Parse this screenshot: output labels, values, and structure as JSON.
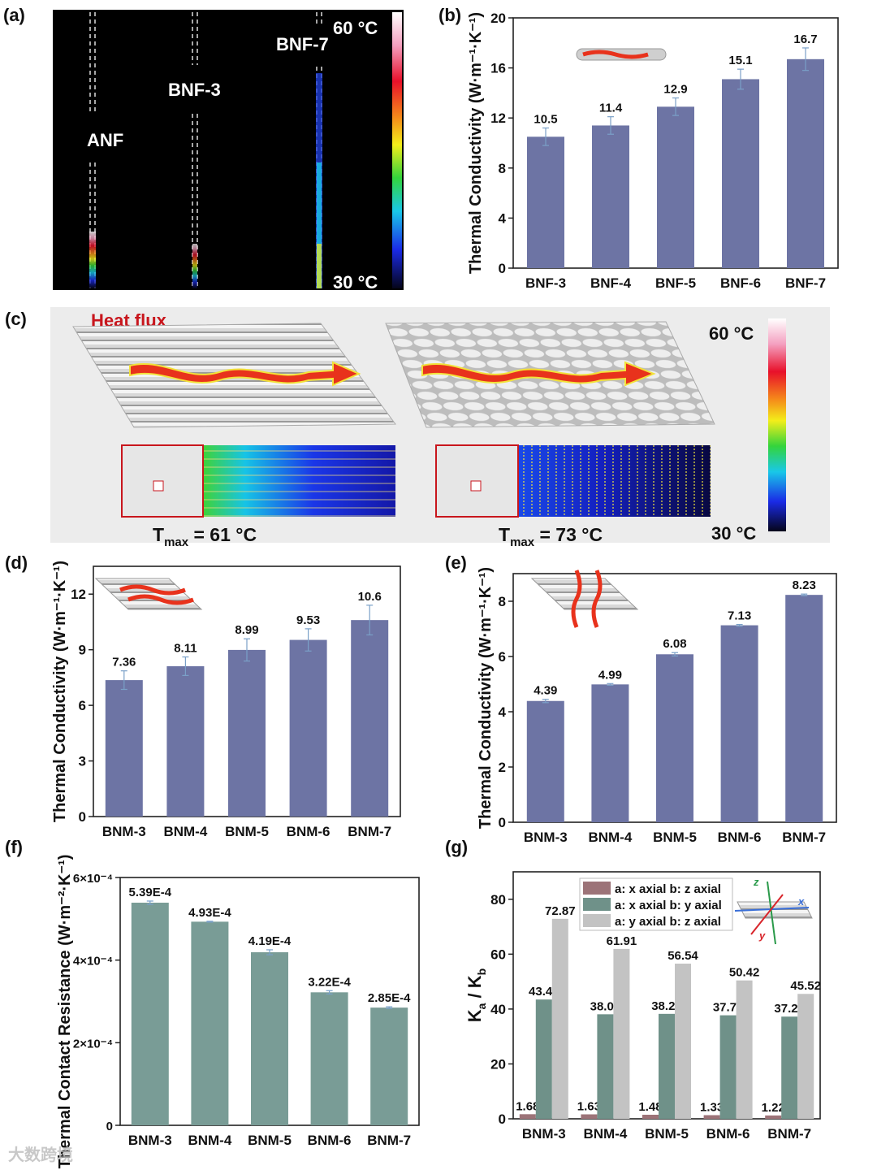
{
  "panel_a": {
    "label": "(a)",
    "sample_labels": [
      "ANF",
      "BNF-3",
      "BNF-7"
    ],
    "scale_max": "60 °C",
    "scale_min": "30 °C"
  },
  "panel_c": {
    "label": "(c)",
    "heat_flux": "Heat flux",
    "scale_max": "60 °C",
    "scale_min": "30 °C",
    "tmax_left": {
      "symbol": "T",
      "sub": "max",
      "value": " = 61 °C"
    },
    "tmax_right": {
      "symbol": "T",
      "sub": "max",
      "value": " = 73 °C"
    }
  },
  "watermark": "大数跨境",
  "chart_data": [
    {
      "id": "b",
      "panel_label": "(b)",
      "type": "bar",
      "categories": [
        "BNF-3",
        "BNF-4",
        "BNF-5",
        "BNF-6",
        "BNF-7"
      ],
      "values": [
        10.5,
        11.4,
        12.9,
        15.1,
        16.7
      ],
      "errors": [
        0.7,
        0.7,
        0.7,
        0.8,
        0.9
      ],
      "value_labels": [
        "10.5",
        "11.4",
        "12.9",
        "15.1",
        "16.7"
      ],
      "ylabel": "Thermal Conductivity (W·m⁻¹·K⁻¹)",
      "ylim": [
        0,
        20
      ],
      "yticks": [
        0,
        4,
        8,
        12,
        16,
        20
      ],
      "yticklabels": [
        "0",
        "4",
        "8",
        "12",
        "16",
        "20"
      ],
      "color": "#6d74a4",
      "grid": false
    },
    {
      "id": "d",
      "panel_label": "(d)",
      "type": "bar",
      "categories": [
        "BNM-3",
        "BNM-4",
        "BNM-5",
        "BNM-6",
        "BNM-7"
      ],
      "values": [
        7.36,
        8.11,
        8.99,
        9.53,
        10.6
      ],
      "errors": [
        0.5,
        0.5,
        0.6,
        0.6,
        0.8
      ],
      "value_labels": [
        "7.36",
        "8.11",
        "8.99",
        "9.53",
        "10.6"
      ],
      "ylabel": "Thermal Conductivity (W·m⁻¹·K⁻¹)",
      "ylim": [
        0,
        13.5
      ],
      "yticks": [
        0,
        3,
        6,
        9,
        12
      ],
      "yticklabels": [
        "0",
        "3",
        "6",
        "9",
        "12"
      ],
      "color": "#6d74a4",
      "grid": false
    },
    {
      "id": "e",
      "panel_label": "(e)",
      "type": "bar",
      "categories": [
        "BNM-3",
        "BNM-4",
        "BNM-5",
        "BNM-6",
        "BNM-7"
      ],
      "values": [
        4.39,
        4.99,
        6.08,
        7.13,
        8.23
      ],
      "errors": [
        0.06,
        0.03,
        0.06,
        0.03,
        0.03
      ],
      "value_labels": [
        "4.39",
        "4.99",
        "6.08",
        "7.13",
        "8.23"
      ],
      "ylabel": "Thermal Conductivity (W·m⁻¹·K⁻¹)",
      "ylim": [
        0,
        9
      ],
      "yticks": [
        0,
        2,
        4,
        6,
        8
      ],
      "yticklabels": [
        "0",
        "2",
        "4",
        "6",
        "8"
      ],
      "color": "#6d74a4",
      "grid": false
    },
    {
      "id": "f",
      "panel_label": "(f)",
      "type": "bar",
      "categories": [
        "BNM-3",
        "BNM-4",
        "BNM-5",
        "BNM-6",
        "BNM-7"
      ],
      "values": [
        0.000539,
        0.000493,
        0.000419,
        0.000322,
        0.000285
      ],
      "errors": [
        4e-06,
        1e-06,
        6e-06,
        4e-06,
        2e-06
      ],
      "value_labels": [
        "5.39E-4",
        "4.93E-4",
        "4.19E-4",
        "3.22E-4",
        "2.85E-4"
      ],
      "ylabel": "Thermal Contact Resistance (W·m⁻²·K⁻¹)",
      "ylim": [
        0,
        0.0006
      ],
      "yticks": [
        0,
        0.0002,
        0.0004,
        0.0006
      ],
      "yticklabels": [
        "0",
        "2×10⁻⁴",
        "4×10⁻⁴",
        "6×10⁻⁴"
      ],
      "color": "#799c96",
      "grid": false
    },
    {
      "id": "g",
      "panel_label": "(g)",
      "type": "bar",
      "categories": [
        "BNM-3",
        "BNM-4",
        "BNM-5",
        "BNM-6",
        "BNM-7"
      ],
      "series": [
        {
          "name": "a: x axial b: z axial",
          "values": [
            1.68,
            1.63,
            1.48,
            1.33,
            1.22
          ],
          "value_labels": [
            "1.68",
            "1.63",
            "1.48",
            "1.33",
            "1.22"
          ],
          "color": "#9c7378"
        },
        {
          "name": "a: x axial b: y axial",
          "values": [
            43.47,
            38.09,
            38.24,
            37.72,
            37.24
          ],
          "value_labels": [
            "43.47",
            "38.09",
            "38.24",
            "37.72",
            "37.24"
          ],
          "color": "#6f9189"
        },
        {
          "name": "a: y axial b: z axial",
          "values": [
            72.87,
            61.91,
            56.54,
            50.42,
            45.52
          ],
          "value_labels": [
            "72.87",
            "61.91",
            "56.54",
            "50.42",
            "45.52"
          ],
          "color": "#c3c3c3"
        }
      ],
      "ylabel_parts": [
        "K",
        "a",
        " / K",
        "b"
      ],
      "ylim": [
        0,
        90
      ],
      "yticks": [
        0,
        20,
        40,
        60,
        80
      ],
      "yticklabels": [
        "0",
        "20",
        "40",
        "60",
        "80"
      ],
      "legend_position": "top-center",
      "inset_axes": [
        "x",
        "y",
        "z"
      ],
      "grid": false
    }
  ]
}
